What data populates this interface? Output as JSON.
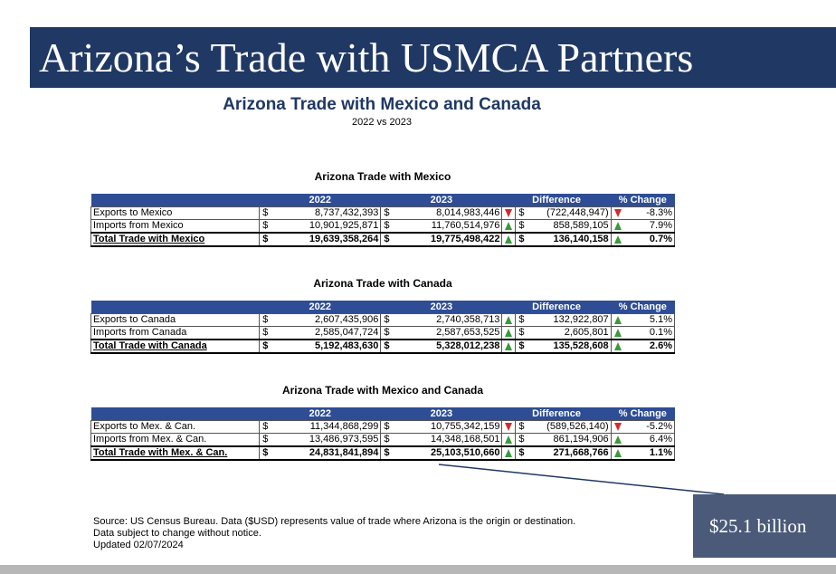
{
  "banner_title": "Arizona’s Trade with USMCA Partners",
  "doc_title": "Arizona Trade with Mexico and Canada",
  "doc_subtitle": "2022 vs 2023",
  "columns": [
    "2022",
    "2023",
    "Difference",
    "% Change"
  ],
  "mexico": {
    "title": "Arizona Trade with Mexico",
    "rows": [
      {
        "label": "Exports to Mexico",
        "v2022": "8,737,432,393",
        "v2023": "8,014,983,446",
        "dir": "down",
        "diff": "(722,448,947)",
        "pdir": "down",
        "pct": "-8.3%"
      },
      {
        "label": "Imports from Mexico",
        "v2022": "10,901,925,871",
        "v2023": "11,760,514,976",
        "dir": "up",
        "diff": "858,589,105",
        "pdir": "up",
        "pct": "7.9%"
      }
    ],
    "total": {
      "label": "Total Trade with Mexico",
      "v2022": "19,639,358,264",
      "v2023": "19,775,498,422",
      "dir": "up",
      "diff": "136,140,158",
      "pdir": "up",
      "pct": "0.7%"
    }
  },
  "canada": {
    "title": "Arizona Trade with Canada",
    "rows": [
      {
        "label": "Exports to Canada",
        "v2022": "2,607,435,906",
        "v2023": "2,740,358,713",
        "dir": "up",
        "diff": "132,922,807",
        "pdir": "up",
        "pct": "5.1%"
      },
      {
        "label": "Imports from Canada",
        "v2022": "2,585,047,724",
        "v2023": "2,587,653,525",
        "dir": "up",
        "diff": "2,605,801",
        "pdir": "up",
        "pct": "0.1%"
      }
    ],
    "total": {
      "label": "Total Trade with Canada",
      "v2022": "5,192,483,630",
      "v2023": "5,328,012,238",
      "dir": "up",
      "diff": "135,528,608",
      "pdir": "up",
      "pct": "2.6%"
    }
  },
  "combined": {
    "title": "Arizona Trade with Mexico and Canada",
    "rows": [
      {
        "label": "Exports to Mex. & Can.",
        "v2022": "11,344,868,299",
        "v2023": "10,755,342,159",
        "dir": "down",
        "diff": "(589,526,140)",
        "pdir": "down",
        "pct": "-5.2%"
      },
      {
        "label": "Imports from Mex. & Can.",
        "v2022": "13,486,973,595",
        "v2023": "14,348,168,501",
        "dir": "up",
        "diff": "861,194,906",
        "pdir": "up",
        "pct": "6.4%"
      }
    ],
    "total": {
      "label": "Total Trade with Mex. & Can.",
      "v2022": "24,831,841,894",
      "v2023": "25,103,510,660",
      "dir": "up",
      "diff": "271,668,766",
      "pdir": "up",
      "pct": "1.1%"
    }
  },
  "currency_symbol": "$",
  "source_lines": [
    "Source: US Census Bureau.  Data ($USD) represents value of trade where Arizona is the origin or destination.",
    "Data subject to change without notice.",
    "Updated 02/07/2024"
  ],
  "callout": "$25.1 billion",
  "colors": {
    "banner": "#1f3864",
    "header": "#2e4d95",
    "up": "#3a9a3a",
    "down": "#d42a2a",
    "callout": "#4a5a78"
  }
}
